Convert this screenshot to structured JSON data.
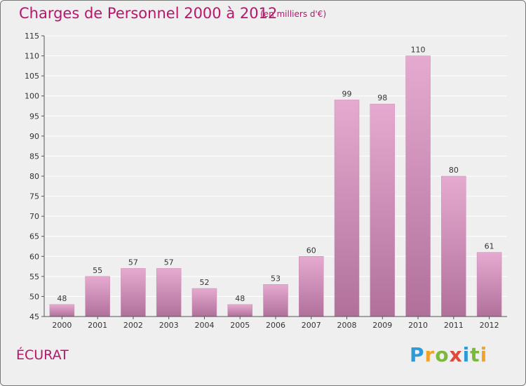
{
  "header": {
    "title": "Charges de Personnel 2000 à 2012",
    "subtitle": "(en milliers d'€)"
  },
  "footer": {
    "commune": "ÉCURAT",
    "brand_letters": [
      "P",
      "r",
      "o",
      "x",
      "i",
      "t",
      "i"
    ]
  },
  "colors": {
    "title": "#b8156b",
    "bar_light": "#e6aad0",
    "bar_dark": "#b0709a",
    "background": "#efefef"
  },
  "chart_data": {
    "type": "bar",
    "title": "Charges de Personnel 2000 à 2012",
    "subtitle": "(en milliers d'€)",
    "categories": [
      "2000",
      "2001",
      "2002",
      "2003",
      "2004",
      "2005",
      "2006",
      "2007",
      "2008",
      "2009",
      "2010",
      "2011",
      "2012"
    ],
    "values": [
      48,
      55,
      57,
      57,
      52,
      48,
      53,
      60,
      99,
      98,
      110,
      80,
      61
    ],
    "ylim": [
      45,
      115
    ],
    "yticks": [
      45,
      50,
      55,
      60,
      65,
      70,
      75,
      80,
      85,
      90,
      95,
      100,
      105,
      110,
      115
    ],
    "grid": true,
    "data_labels": true,
    "legend": "none"
  }
}
